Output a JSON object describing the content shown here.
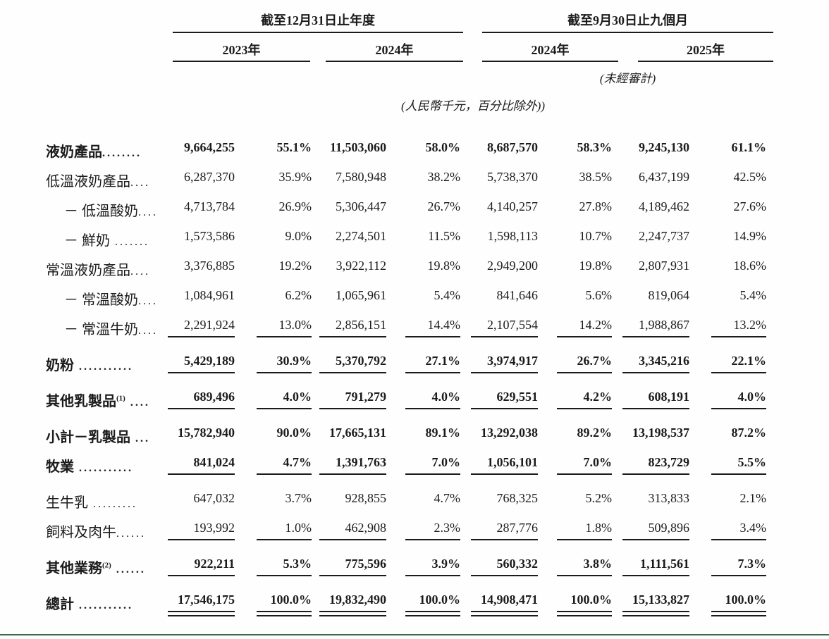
{
  "header": {
    "group1": "截至12月31日止年度",
    "group2": "截至9月30日止九個月",
    "col_years": [
      "2023年",
      "2024年",
      "2024年",
      "2025年"
    ],
    "unaudited_note": "(未經審計)",
    "currency_note": "(人民幣千元，百分比除外))"
  },
  "table": {
    "rows": [
      {
        "label": "液奶產品",
        "sup": "",
        "dots": "........",
        "indent": 0,
        "bold": true,
        "underline": "none",
        "values": [
          "9,664,255",
          "55.1%",
          "11,503,060",
          "58.0%",
          "8,687,570",
          "58.3%",
          "9,245,130",
          "61.1%"
        ]
      },
      {
        "label": "低溫液奶產品",
        "sup": "",
        "dots": "....",
        "indent": 0,
        "bold": false,
        "underline": "none",
        "values": [
          "6,287,370",
          "35.9%",
          "7,580,948",
          "38.2%",
          "5,738,370",
          "38.5%",
          "6,437,199",
          "42.5%"
        ]
      },
      {
        "label": "－ 低溫酸奶",
        "sup": "",
        "dots": "....",
        "indent": 1,
        "bold": false,
        "underline": "none",
        "values": [
          "4,713,784",
          "26.9%",
          "5,306,447",
          "26.7%",
          "4,140,257",
          "27.8%",
          "4,189,462",
          "27.6%"
        ]
      },
      {
        "label": "－ 鮮奶",
        "sup": "",
        "dots": " .......",
        "indent": 1,
        "bold": false,
        "underline": "none",
        "values": [
          "1,573,586",
          "9.0%",
          "2,274,501",
          "11.5%",
          "1,598,113",
          "10.7%",
          "2,247,737",
          "14.9%"
        ]
      },
      {
        "label": "常溫液奶產品",
        "sup": "",
        "dots": "....",
        "indent": 0,
        "bold": false,
        "underline": "none",
        "values": [
          "3,376,885",
          "19.2%",
          "3,922,112",
          "19.8%",
          "2,949,200",
          "19.8%",
          "2,807,931",
          "18.6%"
        ]
      },
      {
        "label": "－ 常溫酸奶",
        "sup": "",
        "dots": "....",
        "indent": 1,
        "bold": false,
        "underline": "none",
        "values": [
          "1,084,961",
          "6.2%",
          "1,065,961",
          "5.4%",
          "841,646",
          "5.6%",
          "819,064",
          "5.4%"
        ]
      },
      {
        "label": "－ 常溫牛奶",
        "sup": "",
        "dots": "....",
        "indent": 1,
        "bold": false,
        "underline": "single",
        "values": [
          "2,291,924",
          "13.0%",
          "2,856,151",
          "14.4%",
          "2,107,554",
          "14.2%",
          "1,988,867",
          "13.2%"
        ]
      },
      {
        "label": "奶粉",
        "sup": "",
        "dots": " ...........",
        "indent": 0,
        "bold": true,
        "underline": "single",
        "values": [
          "5,429,189",
          "30.9%",
          "5,370,792",
          "27.1%",
          "3,974,917",
          "26.7%",
          "3,345,216",
          "22.1%"
        ]
      },
      {
        "label": "其他乳製品",
        "sup": "(1)",
        "dots": " ....",
        "indent": 0,
        "bold": true,
        "underline": "single",
        "values": [
          "689,496",
          "4.0%",
          "791,279",
          "4.0%",
          "629,551",
          "4.2%",
          "608,191",
          "4.0%"
        ]
      },
      {
        "label": "小計－乳製品",
        "sup": "",
        "dots": " ...",
        "indent": 0,
        "bold": true,
        "underline": "none",
        "values": [
          "15,782,940",
          "90.0%",
          "17,665,131",
          "89.1%",
          "13,292,038",
          "89.2%",
          "13,198,537",
          "87.2%"
        ]
      },
      {
        "label": "牧業",
        "sup": "",
        "dots": " ...........",
        "indent": 0,
        "bold": true,
        "underline": "single",
        "values": [
          "841,024",
          "4.7%",
          "1,391,763",
          "7.0%",
          "1,056,101",
          "7.0%",
          "823,729",
          "5.5%"
        ]
      },
      {
        "label": "生牛乳",
        "sup": "",
        "dots": " .........",
        "indent": 0,
        "bold": false,
        "underline": "none",
        "values": [
          "647,032",
          "3.7%",
          "928,855",
          "4.7%",
          "768,325",
          "5.2%",
          "313,833",
          "2.1%"
        ]
      },
      {
        "label": "飼料及肉牛",
        "sup": "",
        "dots": "......",
        "indent": 0,
        "bold": false,
        "underline": "single",
        "values": [
          "193,992",
          "1.0%",
          "462,908",
          "2.3%",
          "287,776",
          "1.8%",
          "509,896",
          "3.4%"
        ]
      },
      {
        "label": "其他業務",
        "sup": "(2)",
        "dots": " ......",
        "indent": 0,
        "bold": true,
        "underline": "single",
        "values": [
          "922,211",
          "5.3%",
          "775,596",
          "3.9%",
          "560,332",
          "3.8%",
          "1,111,561",
          "7.3%"
        ]
      },
      {
        "label": "總計",
        "sup": "",
        "dots": " ...........",
        "indent": 0,
        "bold": true,
        "underline": "double",
        "values": [
          "17,546,175",
          "100.0%",
          "19,832,490",
          "100.0%",
          "14,908,471",
          "100.0%",
          "15,133,827",
          "100.0%"
        ]
      }
    ]
  },
  "colors": {
    "text": "#1b1b1b",
    "header_rule": "#1b1b1b",
    "bottom_rule": "#3e6b49",
    "background": "#fefefe"
  }
}
